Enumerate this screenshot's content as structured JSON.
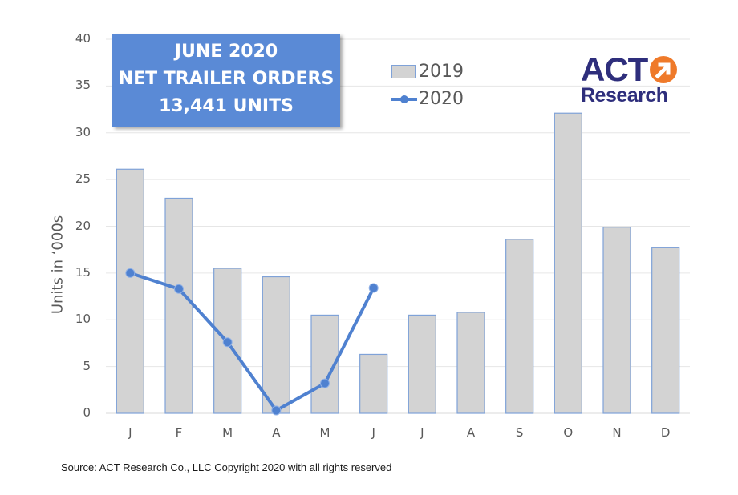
{
  "title_box": {
    "line1": "JUNE 2020",
    "line2": "NET TRAILER ORDERS",
    "line3": "13,441 UNITS"
  },
  "legend": {
    "series_2019": "2019",
    "series_2020": "2020"
  },
  "logo": {
    "top": "ACT",
    "bottom": "Research",
    "icon": "orange-arrow-circle-icon"
  },
  "axis": {
    "ylabel": "Units in ‘000s",
    "yticks": [
      "0",
      "5",
      "10",
      "15",
      "20",
      "25",
      "30",
      "35",
      "40"
    ],
    "xticks": [
      "J",
      "F",
      "M",
      "A",
      "M",
      "J",
      "J",
      "A",
      "S",
      "O",
      "N",
      "D"
    ]
  },
  "source": "Source: ACT Research Co., LLC  Copyright 2020 with all rights reserved",
  "colors": {
    "bar_fill": "#d3d3d3",
    "bar_border": "#7fa2d8",
    "line": "#4f81d0",
    "title_box": "#5a8ad6",
    "logo_blue": "#2e2e7c",
    "logo_orange": "#ef7a2a",
    "grid": "#e6e6e6"
  },
  "chart_data": {
    "type": "bar",
    "title": "JUNE 2020 NET TRAILER ORDERS 13,441 UNITS",
    "xlabel": "",
    "ylabel": "Units in ‘000s",
    "ylim": [
      0,
      40
    ],
    "yticks": [
      0,
      5,
      10,
      15,
      20,
      25,
      30,
      35,
      40
    ],
    "grid": true,
    "legend_position": "top-center",
    "categories": [
      "J",
      "F",
      "M",
      "A",
      "M",
      "J",
      "J",
      "A",
      "S",
      "O",
      "N",
      "D"
    ],
    "series": [
      {
        "name": "2019",
        "type": "bar",
        "values": [
          26.1,
          23.0,
          15.5,
          14.6,
          10.5,
          6.3,
          10.5,
          10.8,
          18.6,
          32.1,
          19.9,
          17.7
        ]
      },
      {
        "name": "2020",
        "type": "line",
        "values": [
          15.0,
          13.3,
          7.6,
          0.3,
          3.2,
          13.4,
          null,
          null,
          null,
          null,
          null,
          null
        ]
      }
    ],
    "annotations": [
      "JUNE 2020 NET TRAILER ORDERS 13,441 UNITS"
    ],
    "source": "Source: ACT Research Co., LLC  Copyright 2020 with all rights reserved"
  }
}
